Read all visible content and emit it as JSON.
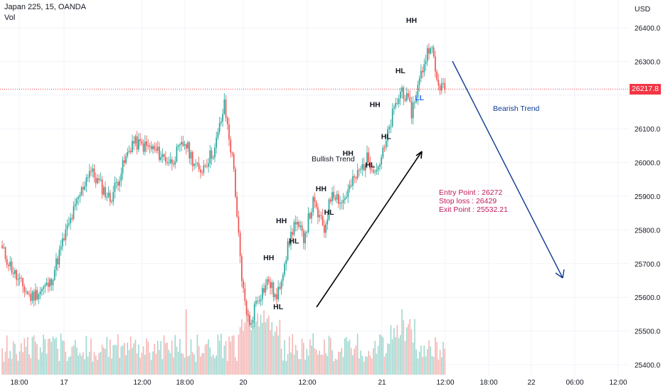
{
  "header": {
    "symbol": "Japan 225, 15, OANDA",
    "indicator": "Vol"
  },
  "currency": "USD",
  "last_price": "26217.8",
  "colors": {
    "up": "#26a69a",
    "down": "#ef5350",
    "up_vol": "#9ed7cf",
    "down_vol": "#f4b5b3",
    "last_price_line": "#f23645",
    "bearish_arrow": "#0d3a91",
    "info_text": "#c2185b",
    "grid": "#f0f3fa",
    "text": "#131722"
  },
  "chart_data": {
    "type": "candlestick",
    "ylabel": "USD",
    "ylim": [
      25380,
      26460
    ],
    "y_ticks": [
      25400,
      25500,
      25600,
      25700,
      25800,
      25900,
      26000,
      26100,
      26200,
      26300,
      26400
    ],
    "x_ticks": [
      "18:00",
      "17",
      "12:00",
      "18:00",
      "20",
      "12:00",
      "21",
      "12:00",
      "18:00",
      "22",
      "06:00",
      "12:00"
    ],
    "price_series": [
      {
        "bar": 0,
        "close": 25740
      },
      {
        "bar": 10,
        "close": 25650
      },
      {
        "bar": 18,
        "close": 25600
      },
      {
        "bar": 30,
        "close": 25640
      },
      {
        "bar": 40,
        "close": 25790
      },
      {
        "bar": 55,
        "close": 25980
      },
      {
        "bar": 68,
        "close": 25890
      },
      {
        "bar": 82,
        "close": 26060
      },
      {
        "bar": 95,
        "close": 26040
      },
      {
        "bar": 106,
        "close": 26000
      },
      {
        "bar": 115,
        "close": 26060
      },
      {
        "bar": 124,
        "close": 25970
      },
      {
        "bar": 134,
        "close": 26040
      },
      {
        "bar": 140,
        "close": 26170
      },
      {
        "bar": 146,
        "close": 25980
      },
      {
        "bar": 151,
        "close": 25640
      },
      {
        "bar": 156,
        "close": 25510
      },
      {
        "bar": 160,
        "close": 25590
      },
      {
        "bar": 168,
        "close": 25650
      },
      {
        "bar": 173,
        "close": 25590
      },
      {
        "bar": 178,
        "close": 25710
      },
      {
        "bar": 184,
        "close": 25820
      },
      {
        "bar": 190,
        "close": 25780
      },
      {
        "bar": 196,
        "close": 25880
      },
      {
        "bar": 203,
        "close": 25800
      },
      {
        "bar": 208,
        "close": 25920
      },
      {
        "bar": 214,
        "close": 25880
      },
      {
        "bar": 222,
        "close": 25950
      },
      {
        "bar": 230,
        "close": 26010
      },
      {
        "bar": 236,
        "close": 25980
      },
      {
        "bar": 241,
        "close": 26040
      },
      {
        "bar": 246,
        "close": 26140
      },
      {
        "bar": 252,
        "close": 26220
      },
      {
        "bar": 258,
        "close": 26150
      },
      {
        "bar": 265,
        "close": 26280
      },
      {
        "bar": 270,
        "close": 26360
      },
      {
        "bar": 274,
        "close": 26240
      },
      {
        "bar": 278,
        "close": 26217.8
      }
    ],
    "annotations": [
      {
        "text": "HH",
        "x_bar": 168,
        "price": 25710
      },
      {
        "text": "HL",
        "x_bar": 174,
        "price": 25565
      },
      {
        "text": "HH",
        "x_bar": 176,
        "price": 25820
      },
      {
        "text": "HL",
        "x_bar": 184,
        "price": 25760
      },
      {
        "text": "HH",
        "x_bar": 201,
        "price": 25915
      },
      {
        "text": "HL",
        "x_bar": 206,
        "price": 25845
      },
      {
        "text": "HH",
        "x_bar": 218,
        "price": 26020
      },
      {
        "text": "HL",
        "x_bar": 232,
        "price": 25985
      },
      {
        "text": "HH",
        "x_bar": 235,
        "price": 26165
      },
      {
        "text": "HL",
        "x_bar": 242,
        "price": 26070
      },
      {
        "text": "HL",
        "x_bar": 251,
        "price": 26265
      },
      {
        "text": "HH",
        "x_bar": 258,
        "price": 26415
      },
      {
        "text": "LL",
        "x_bar": 263,
        "price": 26185
      }
    ],
    "trend_labels": {
      "bullish": "Bullish Trend",
      "bearish": "Bearish Trend"
    },
    "trade_info": [
      "Entry Point : 26272",
      "Stop loss : 26429",
      "Exit Point : 25532.21"
    ]
  }
}
